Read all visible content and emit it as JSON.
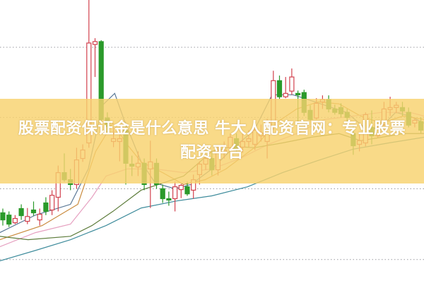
{
  "title": "股票配资保证金是什么意思 牛大人配资官网：专业股票配资平台",
  "colors": {
    "up": "#d2414e",
    "down": "#2b9a2b",
    "banner": "#f8d26e",
    "grid": "#9a9aa0"
  },
  "chart_data": {
    "type": "candlestick",
    "ylim": [
      0,
      100
    ],
    "grid": true,
    "grid_values": [
      8.3,
      33.3,
      58.5,
      83.3
    ],
    "candles_ohlc": [
      [
        24.8,
        26.3,
        20.3,
        22.3
      ],
      [
        24,
        25.3,
        19.8,
        20.8
      ],
      [
        21.3,
        24,
        20.8,
        22.8
      ],
      [
        26.3,
        27.8,
        22.3,
        23.8
      ],
      [
        21.8,
        26.5,
        20.8,
        23.5
      ],
      [
        25.8,
        28.8,
        23.8,
        24.8
      ],
      [
        22.3,
        26.3,
        20.3,
        24.3
      ],
      [
        28.3,
        30.3,
        24,
        25.3
      ],
      [
        25.8,
        32.8,
        24,
        31
      ],
      [
        30.3,
        41.5,
        25.3,
        39
      ],
      [
        39,
        45.8,
        35.8,
        36.5
      ],
      [
        36.5,
        40.3,
        32.8,
        34.8
      ],
      [
        34.8,
        47.8,
        33.3,
        43.5
      ],
      [
        44,
        49,
        42.8,
        47
      ],
      [
        49.5,
        100,
        47.8,
        84.8
      ],
      [
        84.3,
        86.5,
        72.8,
        85.3
      ],
      [
        85.3,
        85.8,
        57.3,
        57.8
      ],
      [
        58.3,
        60.3,
        52.8,
        55.3
      ],
      [
        50,
        55,
        48,
        51
      ],
      [
        50,
        53,
        43,
        51
      ],
      [
        54,
        56.5,
        34.8,
        42.3
      ],
      [
        42,
        45,
        37.8,
        41.3
      ],
      [
        41,
        46.5,
        37.8,
        42.3
      ],
      [
        42.3,
        44,
        32.8,
        34.8
      ],
      [
        40.3,
        50.3,
        26.5,
        42.8
      ],
      [
        42.3,
        44,
        33.3,
        34.8
      ],
      [
        33.3,
        34.8,
        28.3,
        29.8
      ],
      [
        29.8,
        32.3,
        27.3,
        29.3
      ],
      [
        29.8,
        35.8,
        25.3,
        34
      ],
      [
        33,
        35,
        30,
        34.5
      ],
      [
        34,
        35.8,
        30.8,
        31.5
      ],
      [
        32.8,
        38.3,
        29.8,
        36.5
      ],
      [
        38.3,
        43,
        34.8,
        42
      ],
      [
        42,
        45,
        40,
        44
      ],
      [
        44,
        46,
        38,
        40
      ],
      [
        40,
        48,
        38,
        46
      ],
      [
        46,
        50,
        44,
        47
      ],
      [
        47.8,
        52.8,
        46.5,
        51.5
      ],
      [
        51,
        52.8,
        46.5,
        47
      ],
      [
        48,
        53,
        46,
        50
      ],
      [
        50,
        54,
        48,
        51
      ],
      [
        49,
        56,
        47,
        54
      ],
      [
        52,
        56,
        50,
        53
      ],
      [
        50,
        58,
        44,
        57
      ],
      [
        55.3,
        75,
        54,
        71.5
      ],
      [
        71.5,
        73.3,
        65,
        65.8
      ],
      [
        65.8,
        72.8,
        65.3,
        67
      ],
      [
        67.8,
        75.8,
        66.5,
        72.8
      ],
      [
        67,
        68,
        56,
        66.5
      ],
      [
        67.3,
        68.3,
        59,
        60.3
      ],
      [
        61,
        62.8,
        57.3,
        57.8
      ],
      [
        58.3,
        65.3,
        57.8,
        63.5
      ],
      [
        64,
        66.3,
        61.5,
        64.8
      ],
      [
        64.8,
        66.3,
        60.3,
        61.5
      ],
      [
        61.5,
        63,
        59.5,
        60.3
      ],
      [
        62,
        63.5,
        58.5,
        59.8
      ],
      [
        60.3,
        61.5,
        57,
        58.5
      ],
      [
        52.8,
        55.3,
        45.3,
        48.5
      ],
      [
        49,
        52.8,
        46.5,
        50.3
      ],
      [
        49.5,
        60.3,
        48.3,
        59.5
      ],
      [
        55,
        61,
        49,
        52
      ],
      [
        52,
        55.8,
        51.3,
        54.8
      ],
      [
        56,
        64,
        55.3,
        61.5
      ],
      [
        61.3,
        65.8,
        59,
        62
      ],
      [
        62,
        64,
        60,
        62.8
      ],
      [
        62,
        64,
        59,
        60.8
      ],
      [
        60.3,
        62,
        55,
        55.8
      ],
      [
        56.5,
        58,
        55,
        57.5
      ],
      [
        57,
        58.5,
        53,
        54
      ]
    ],
    "lines": [
      {
        "color": "#5a7896",
        "points": [
          [
            -0.5,
            17.8
          ],
          [
            5.3,
            24
          ],
          [
            11,
            27.8
          ],
          [
            13.9,
            40.3
          ],
          [
            16.2,
            62.8
          ],
          [
            18.2,
            67
          ],
          [
            19.7,
            57.8
          ],
          [
            22.5,
            42.8
          ],
          [
            24.8,
            35.3
          ],
          [
            28,
            33.3
          ],
          [
            30.6,
            34.8
          ],
          [
            34,
            40.3
          ],
          [
            37.5,
            47.8
          ],
          [
            40.9,
            54
          ],
          [
            43.8,
            66.5
          ],
          [
            45.5,
            66.5
          ],
          [
            47.2,
            66.5
          ],
          [
            49,
            65.3
          ],
          [
            52.4,
            62.8
          ],
          [
            55.9,
            60.3
          ],
          [
            59.3,
            54
          ],
          [
            61.6,
            55.3
          ],
          [
            63.9,
            60.3
          ],
          [
            66.2,
            59
          ],
          [
            68.5,
            56.5
          ]
        ]
      },
      {
        "color": "#c98a3c",
        "points": [
          [
            -0.5,
            15.3
          ],
          [
            6.4,
            20.3
          ],
          [
            12.2,
            27.8
          ],
          [
            15.1,
            46.5
          ],
          [
            17.9,
            56.5
          ],
          [
            20.2,
            49
          ],
          [
            22.5,
            42.8
          ],
          [
            26,
            39
          ],
          [
            29.4,
            34.8
          ],
          [
            32.9,
            36.5
          ],
          [
            36.3,
            40.3
          ],
          [
            40.9,
            47.8
          ],
          [
            44.4,
            56.5
          ],
          [
            47.8,
            61.5
          ],
          [
            51.3,
            64
          ],
          [
            54.7,
            63.3
          ],
          [
            58.2,
            59
          ],
          [
            61.6,
            56.5
          ],
          [
            65.1,
            59
          ],
          [
            68.5,
            57.8
          ]
        ]
      },
      {
        "color": "#e6a0c0",
        "points": [
          [
            -0.5,
            12.8
          ],
          [
            5.3,
            17.8
          ],
          [
            11,
            20.8
          ],
          [
            14.5,
            30.3
          ],
          [
            16.8,
            37.8
          ],
          [
            20.2,
            40.3
          ],
          [
            24.8,
            40.3
          ],
          [
            29.4,
            39
          ],
          [
            34,
            40.3
          ],
          [
            38.6,
            44
          ],
          [
            43.2,
            49
          ],
          [
            47.8,
            52.8
          ],
          [
            52.4,
            57.8
          ],
          [
            57,
            59
          ],
          [
            61.6,
            60.3
          ],
          [
            66.2,
            60.3
          ],
          [
            68.5,
            59
          ]
        ]
      },
      {
        "color": "#5e7d3c",
        "points": [
          [
            -0.5,
            16.5
          ],
          [
            4.1,
            15.3
          ],
          [
            11,
            16.5
          ],
          [
            14.5,
            20.3
          ],
          [
            17.9,
            25.3
          ],
          [
            22.5,
            32.8
          ],
          [
            26,
            35.3
          ],
          [
            29.4,
            37.8
          ],
          [
            34,
            46.5
          ],
          [
            37.5,
            48.3
          ],
          [
            40.9,
            47.8
          ],
          [
            45.5,
            49.5
          ],
          [
            50.1,
            51.5
          ],
          [
            54.7,
            52.8
          ],
          [
            58.2,
            50.3
          ],
          [
            61.6,
            51.5
          ],
          [
            65.1,
            52.8
          ],
          [
            68.5,
            52.8
          ]
        ]
      },
      {
        "color": "#3f8c9c",
        "points": [
          [
            -0.5,
            7.8
          ],
          [
            5.3,
            11.5
          ],
          [
            11,
            15.3
          ],
          [
            16.8,
            20.3
          ],
          [
            22.5,
            26.5
          ],
          [
            28.3,
            29
          ],
          [
            34,
            30.8
          ],
          [
            39.8,
            34
          ],
          [
            45.5,
            39
          ],
          [
            51.3,
            43.3
          ],
          [
            57,
            47.3
          ],
          [
            62.8,
            49.5
          ],
          [
            68.5,
            51.5
          ]
        ]
      }
    ]
  }
}
